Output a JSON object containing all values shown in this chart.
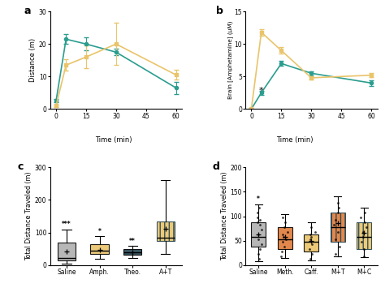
{
  "teal": "#2a9d8f",
  "orange": "#e9c46a",
  "dark_blue": "#264653",
  "gray": "#999999",
  "light_gray": "#b0b0b0",
  "orange2": "#e07b39",
  "panel_a": {
    "label": "a",
    "time": [
      0,
      5,
      15,
      30,
      60
    ],
    "teal_mean": [
      2.5,
      21.5,
      20.0,
      17.5,
      6.5
    ],
    "teal_err": [
      0.5,
      1.5,
      2.0,
      1.0,
      1.8
    ],
    "orange_mean": [
      1.0,
      13.5,
      16.0,
      20.0,
      10.5
    ],
    "orange_err": [
      0.3,
      1.8,
      3.5,
      6.5,
      1.5
    ],
    "ylabel": "Distance (m)",
    "ylim": [
      0,
      30
    ],
    "yticks": [
      0,
      10,
      20,
      30
    ],
    "xticks": [
      0,
      15,
      30,
      45,
      60
    ]
  },
  "panel_b": {
    "label": "b",
    "time": [
      0,
      5,
      15,
      30,
      60
    ],
    "teal_mean": [
      0.0,
      2.5,
      7.0,
      5.5,
      4.0
    ],
    "teal_err": [
      0.0,
      0.3,
      0.4,
      0.3,
      0.4
    ],
    "orange_mean": [
      0.0,
      11.8,
      9.0,
      4.8,
      5.2
    ],
    "orange_err": [
      0.0,
      0.5,
      0.5,
      0.3,
      0.3
    ],
    "star_x": 5,
    "star_y": 2.2,
    "ylabel": "Brain [Amphetamine] (μM)",
    "xlabel": "Time (min)",
    "ylim": [
      0,
      15
    ],
    "yticks": [
      0,
      5,
      10,
      15
    ],
    "xticks": [
      0,
      15,
      30,
      45,
      60
    ]
  },
  "panel_c": {
    "label": "c",
    "categories": [
      "Saline",
      "Amph.",
      "Theo.",
      "A+T"
    ],
    "colors": [
      "#b0b0b0",
      "#e9c46a",
      "#264653",
      "#e9c46a"
    ],
    "hatches": [
      null,
      null,
      null,
      "|||"
    ],
    "hatch_colors": [
      null,
      null,
      null,
      "#264653"
    ],
    "box_data": {
      "Saline": {
        "q1": 15,
        "median": 22,
        "q3": 68,
        "whislo": 5,
        "whishi": 110,
        "mean": 42
      },
      "Amph.": {
        "q1": 35,
        "median": 43,
        "q3": 63,
        "whislo": 18,
        "whishi": 88,
        "mean": 47
      },
      "Theo.": {
        "q1": 32,
        "median": 40,
        "q3": 50,
        "whislo": 22,
        "whishi": 58,
        "mean": 39
      },
      "A+T": {
        "q1": 75,
        "median": 85,
        "q3": 135,
        "whislo": 35,
        "whishi": 260,
        "mean": 112
      }
    },
    "stars": [
      "***",
      "*",
      "**",
      ""
    ],
    "ylabel": "Total Distance Traveled (m)",
    "ylim": [
      0,
      300
    ],
    "yticks": [
      0,
      100,
      200,
      300
    ]
  },
  "panel_d": {
    "label": "d",
    "categories": [
      "Saline",
      "Meth.",
      "Caff.",
      "M+T",
      "M+C"
    ],
    "colors": [
      "#b0b0b0",
      "#e07b39",
      "#e9c46a",
      "#e07b39",
      "#e9c46a"
    ],
    "hatches": [
      null,
      null,
      null,
      "|||",
      "|||"
    ],
    "hatch_colors": [
      null,
      null,
      null,
      "#264653",
      "#264653"
    ],
    "box_data": {
      "Saline": {
        "q1": 38,
        "median": 58,
        "q3": 88,
        "whislo": 8,
        "whishi": 125,
        "mean": 63
      },
      "Meth.": {
        "q1": 33,
        "median": 52,
        "q3": 78,
        "whislo": 14,
        "whishi": 105,
        "mean": 58
      },
      "Caff.": {
        "q1": 28,
        "median": 48,
        "q3": 62,
        "whislo": 10,
        "whishi": 88,
        "mean": 50
      },
      "M+T": {
        "q1": 48,
        "median": 78,
        "q3": 108,
        "whislo": 18,
        "whishi": 140,
        "mean": 86
      },
      "M+C": {
        "q1": 33,
        "median": 58,
        "q3": 88,
        "whislo": 16,
        "whishi": 118,
        "mean": 66
      }
    },
    "scatter_y": {
      "Saline": [
        12,
        22,
        32,
        42,
        52,
        62,
        72,
        82,
        88,
        93,
        98,
        108,
        118
      ],
      "Meth.": [
        18,
        28,
        38,
        48,
        52,
        58,
        62,
        68,
        78,
        88,
        98
      ],
      "Caff.": [
        13,
        23,
        33,
        43,
        52,
        58,
        62,
        68,
        78
      ],
      "M+T": [
        22,
        38,
        52,
        68,
        82,
        92,
        108,
        118,
        128
      ],
      "M+C": [
        18,
        33,
        48,
        58,
        68,
        78,
        88,
        98,
        108
      ]
    },
    "stars": [
      "*",
      "",
      "",
      "",
      ""
    ],
    "ylabel": "Total Distance Traveled (m)",
    "ylim": [
      0,
      200
    ],
    "yticks": [
      0,
      50,
      100,
      150,
      200
    ]
  }
}
